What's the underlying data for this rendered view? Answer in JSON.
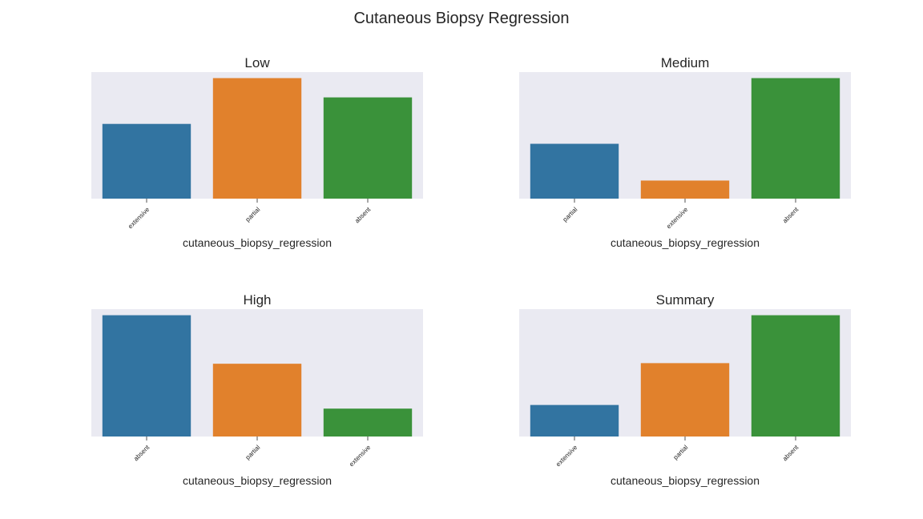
{
  "figure": {
    "suptitle": "Cutaneous Biopsy Regression",
    "colors": [
      "#3274a1",
      "#e1812c",
      "#3a923a"
    ]
  },
  "chart_data": [
    {
      "type": "bar",
      "title": "Low",
      "xlabel": "cutaneous_biopsy_regression",
      "ylabel": "",
      "categories": [
        "extensive",
        "partial",
        "absent"
      ],
      "values": [
        62,
        100,
        84
      ],
      "ylim": [
        0,
        105
      ],
      "yaxis_visible": false,
      "grid": false
    },
    {
      "type": "bar",
      "title": "Medium",
      "xlabel": "cutaneous_biopsy_regression",
      "ylabel": "",
      "categories": [
        "partial",
        "extensive",
        "absent"
      ],
      "values": [
        45.5,
        15,
        100
      ],
      "ylim": [
        0,
        105
      ],
      "yaxis_visible": false,
      "grid": false
    },
    {
      "type": "bar",
      "title": "High",
      "xlabel": "cutaneous_biopsy_regression",
      "ylabel": "",
      "categories": [
        "absent",
        "partial",
        "extensive"
      ],
      "values": [
        100,
        60,
        23
      ],
      "ylim": [
        0,
        105
      ],
      "yaxis_visible": false,
      "grid": false
    },
    {
      "type": "bar",
      "title": "Summary",
      "xlabel": "cutaneous_biopsy_regression",
      "ylabel": "",
      "categories": [
        "extensive",
        "partial",
        "absent"
      ],
      "values": [
        26,
        60.5,
        100
      ],
      "ylim": [
        0,
        105
      ],
      "yaxis_visible": false,
      "grid": false
    }
  ]
}
